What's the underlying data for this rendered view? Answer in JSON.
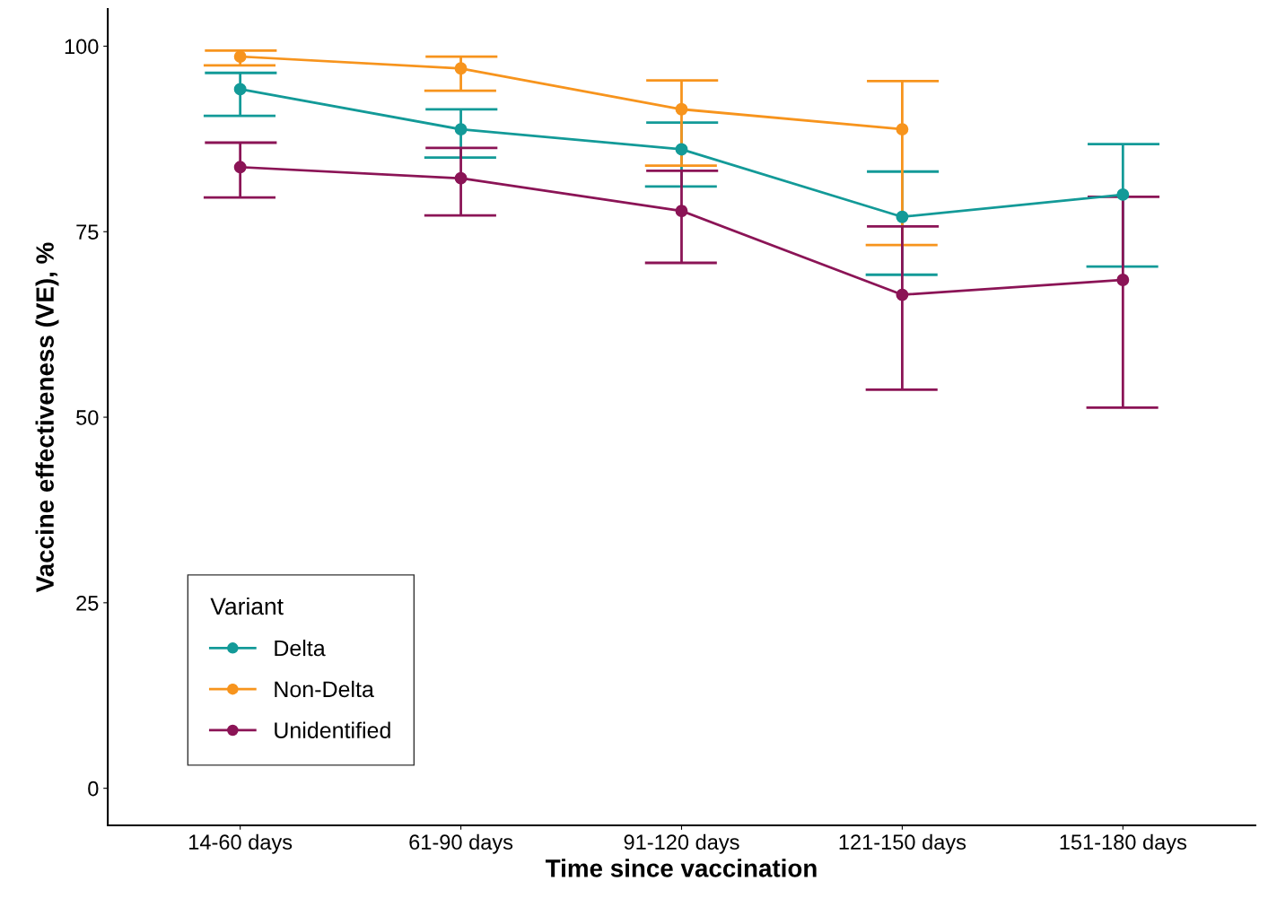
{
  "chart_data": {
    "type": "line",
    "xlabel": "Time since vaccination",
    "ylabel": "Vaccine effectiveness (VE), %",
    "categories": [
      "14-60 days",
      "61-90 days",
      "91-120 days",
      "121-150 days",
      "151-180 days"
    ],
    "legend_title": "Variant",
    "legend": "bottom left",
    "marker": "circle",
    "line_style": "solid",
    "grid": false,
    "ylim": [
      -5,
      105
    ],
    "yticks": [
      0,
      25,
      50,
      75,
      100
    ],
    "series": [
      {
        "name": "Delta",
        "color": "#139a98",
        "values": [
          94.2,
          88.8,
          86.1,
          77.0,
          80.0
        ],
        "errors": [
          [
            90.6,
            96.4
          ],
          [
            85.0,
            91.5
          ],
          [
            81.1,
            89.7
          ],
          [
            69.2,
            83.1
          ],
          [
            70.3,
            86.8
          ]
        ]
      },
      {
        "name": "Non-Delta",
        "color": "#f7941d",
        "values": [
          98.6,
          97.0,
          91.5,
          88.8,
          null
        ],
        "errors": [
          [
            97.4,
            99.4
          ],
          [
            94.0,
            98.6
          ],
          [
            83.9,
            95.4
          ],
          [
            73.2,
            95.3
          ],
          null
        ]
      },
      {
        "name": "Unidentified",
        "color": "#8b1456",
        "values": [
          83.7,
          82.2,
          77.8,
          66.5,
          68.5
        ],
        "errors": [
          [
            79.6,
            87.0
          ],
          [
            77.2,
            86.3
          ],
          [
            70.8,
            83.2
          ],
          [
            53.7,
            75.7
          ],
          [
            51.3,
            79.7
          ]
        ]
      }
    ]
  }
}
